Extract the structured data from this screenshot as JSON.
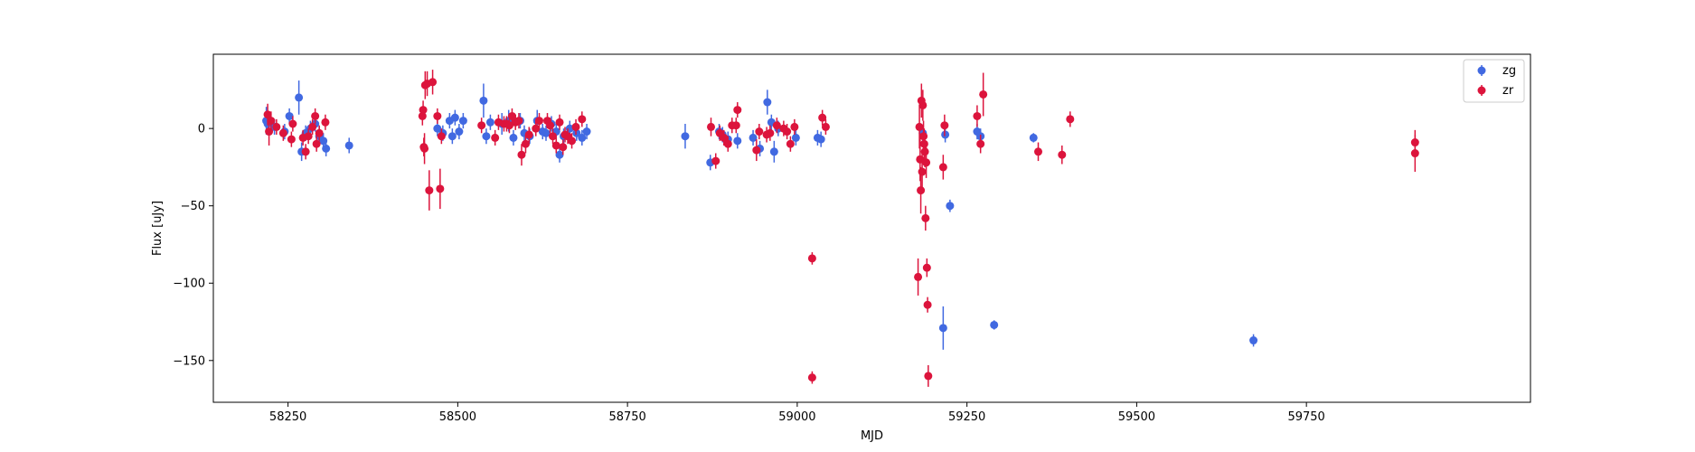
{
  "chart_data": {
    "type": "scatter",
    "title": "",
    "xlabel": "MJD",
    "ylabel": "Flux [uJy]",
    "xlim": [
      58140,
      60080
    ],
    "ylim": [
      -177,
      48
    ],
    "xticks": [
      58250,
      58500,
      58750,
      59000,
      59250,
      59500,
      59750
    ],
    "yticks": [
      0,
      -50,
      -100,
      -150
    ],
    "legend_position": "top-right",
    "series": [
      {
        "name": "zg",
        "color": "#4169e1",
        "points": [
          {
            "x": 58218,
            "y": 5,
            "err": 9
          },
          {
            "x": 58220,
            "y": 3,
            "err": 6
          },
          {
            "x": 58230,
            "y": 1,
            "err": 5
          },
          {
            "x": 58245,
            "y": -2,
            "err": 5
          },
          {
            "x": 58252,
            "y": 8,
            "err": 5
          },
          {
            "x": 58266,
            "y": 20,
            "err": 11
          },
          {
            "x": 58270,
            "y": -15,
            "err": 6
          },
          {
            "x": 58276,
            "y": -3,
            "err": 5
          },
          {
            "x": 58283,
            "y": 0,
            "err": 5
          },
          {
            "x": 58290,
            "y": 3,
            "err": 5
          },
          {
            "x": 58296,
            "y": -5,
            "err": 6
          },
          {
            "x": 58302,
            "y": -8,
            "err": 5
          },
          {
            "x": 58306,
            "y": -13,
            "err": 5
          },
          {
            "x": 58340,
            "y": -11,
            "err": 5
          },
          {
            "x": 58470,
            "y": 0,
            "err": 5
          },
          {
            "x": 58478,
            "y": -3,
            "err": 5
          },
          {
            "x": 58488,
            "y": 5,
            "err": 5
          },
          {
            "x": 58492,
            "y": -5,
            "err": 5
          },
          {
            "x": 58496,
            "y": 7,
            "err": 5
          },
          {
            "x": 58502,
            "y": -2,
            "err": 5
          },
          {
            "x": 58508,
            "y": 5,
            "err": 5
          },
          {
            "x": 58538,
            "y": 18,
            "err": 11
          },
          {
            "x": 58542,
            "y": -5,
            "err": 5
          },
          {
            "x": 58548,
            "y": 4,
            "err": 5
          },
          {
            "x": 58565,
            "y": 3,
            "err": 7
          },
          {
            "x": 58575,
            "y": 5,
            "err": 7
          },
          {
            "x": 58582,
            "y": -6,
            "err": 5
          },
          {
            "x": 58592,
            "y": 5,
            "err": 5
          },
          {
            "x": 58598,
            "y": -3,
            "err": 5
          },
          {
            "x": 58606,
            "y": -5,
            "err": 5
          },
          {
            "x": 58617,
            "y": 5,
            "err": 7
          },
          {
            "x": 58625,
            "y": -2,
            "err": 5
          },
          {
            "x": 58630,
            "y": -3,
            "err": 5
          },
          {
            "x": 58638,
            "y": 3,
            "err": 5
          },
          {
            "x": 58645,
            "y": -2,
            "err": 5
          },
          {
            "x": 58650,
            "y": -17,
            "err": 5
          },
          {
            "x": 58656,
            "y": -5,
            "err": 5
          },
          {
            "x": 58665,
            "y": 0,
            "err": 5
          },
          {
            "x": 58675,
            "y": -3,
            "err": 5
          },
          {
            "x": 58683,
            "y": -6,
            "err": 5
          },
          {
            "x": 58690,
            "y": -2,
            "err": 5
          },
          {
            "x": 58835,
            "y": -5,
            "err": 8
          },
          {
            "x": 58872,
            "y": -22,
            "err": 5
          },
          {
            "x": 58885,
            "y": -2,
            "err": 5
          },
          {
            "x": 58890,
            "y": -4,
            "err": 5
          },
          {
            "x": 58898,
            "y": -7,
            "err": 5
          },
          {
            "x": 58912,
            "y": -8,
            "err": 5
          },
          {
            "x": 58935,
            "y": -6,
            "err": 5
          },
          {
            "x": 58945,
            "y": -13,
            "err": 5
          },
          {
            "x": 58956,
            "y": 17,
            "err": 8
          },
          {
            "x": 58962,
            "y": 4,
            "err": 5
          },
          {
            "x": 58966,
            "y": -15,
            "err": 7
          },
          {
            "x": 58972,
            "y": 0,
            "err": 5
          },
          {
            "x": 58998,
            "y": -6,
            "err": 5
          },
          {
            "x": 59030,
            "y": -6,
            "err": 5
          },
          {
            "x": 59035,
            "y": -7,
            "err": 5
          },
          {
            "x": 59185,
            "y": -3,
            "err": 5
          },
          {
            "x": 59215,
            "y": -129,
            "err": 14
          },
          {
            "x": 59218,
            "y": -4,
            "err": 5
          },
          {
            "x": 59225,
            "y": -50,
            "err": 4
          },
          {
            "x": 59265,
            "y": -2,
            "err": 5
          },
          {
            "x": 59270,
            "y": -5,
            "err": 5
          },
          {
            "x": 59290,
            "y": -127,
            "err": 3
          },
          {
            "x": 59348,
            "y": -6,
            "err": 3
          },
          {
            "x": 59672,
            "y": -137,
            "err": 4
          }
        ]
      },
      {
        "name": "zr",
        "color": "#dc143c",
        "points": [
          {
            "x": 58220,
            "y": 9,
            "err": 7
          },
          {
            "x": 58222,
            "y": -2,
            "err": 9
          },
          {
            "x": 58225,
            "y": 5,
            "err": 6
          },
          {
            "x": 58233,
            "y": 1,
            "err": 5
          },
          {
            "x": 58243,
            "y": -3,
            "err": 5
          },
          {
            "x": 58255,
            "y": -7,
            "err": 5
          },
          {
            "x": 58257,
            "y": 3,
            "err": 5
          },
          {
            "x": 58272,
            "y": -6,
            "err": 5
          },
          {
            "x": 58276,
            "y": -15,
            "err": 5
          },
          {
            "x": 58280,
            "y": -5,
            "err": 5
          },
          {
            "x": 58286,
            "y": 1,
            "err": 5
          },
          {
            "x": 58290,
            "y": 8,
            "err": 5
          },
          {
            "x": 58292,
            "y": -10,
            "err": 5
          },
          {
            "x": 58296,
            "y": -3,
            "err": 5
          },
          {
            "x": 58305,
            "y": 4,
            "err": 5
          },
          {
            "x": 58448,
            "y": 8,
            "err": 6
          },
          {
            "x": 58449,
            "y": 12,
            "err": 6
          },
          {
            "x": 58450,
            "y": -12,
            "err": 6
          },
          {
            "x": 58451,
            "y": -13,
            "err": 10
          },
          {
            "x": 58452,
            "y": 28,
            "err": 9
          },
          {
            "x": 58455,
            "y": 29,
            "err": 8
          },
          {
            "x": 58458,
            "y": -40,
            "err": 13
          },
          {
            "x": 58463,
            "y": 30,
            "err": 8
          },
          {
            "x": 58470,
            "y": 8,
            "err": 5
          },
          {
            "x": 58474,
            "y": -39,
            "err": 13
          },
          {
            "x": 58476,
            "y": -5,
            "err": 5
          },
          {
            "x": 58535,
            "y": 2,
            "err": 5
          },
          {
            "x": 58555,
            "y": -6,
            "err": 5
          },
          {
            "x": 58560,
            "y": 4,
            "err": 5
          },
          {
            "x": 58568,
            "y": 3,
            "err": 5
          },
          {
            "x": 58572,
            "y": 3,
            "err": 5
          },
          {
            "x": 58576,
            "y": 2,
            "err": 5
          },
          {
            "x": 58580,
            "y": 8,
            "err": 5
          },
          {
            "x": 58585,
            "y": 4,
            "err": 5
          },
          {
            "x": 58590,
            "y": 5,
            "err": 5
          },
          {
            "x": 58594,
            "y": -17,
            "err": 7
          },
          {
            "x": 58600,
            "y": -10,
            "err": 6
          },
          {
            "x": 58605,
            "y": -4,
            "err": 5
          },
          {
            "x": 58615,
            "y": 0,
            "err": 5
          },
          {
            "x": 58620,
            "y": 5,
            "err": 5
          },
          {
            "x": 58632,
            "y": 5,
            "err": 5
          },
          {
            "x": 58636,
            "y": 2,
            "err": 5
          },
          {
            "x": 58640,
            "y": -5,
            "err": 5
          },
          {
            "x": 58645,
            "y": -11,
            "err": 5
          },
          {
            "x": 58650,
            "y": 4,
            "err": 5
          },
          {
            "x": 58655,
            "y": -12,
            "err": 5
          },
          {
            "x": 58658,
            "y": -4,
            "err": 5
          },
          {
            "x": 58662,
            "y": -5,
            "err": 5
          },
          {
            "x": 58668,
            "y": -8,
            "err": 5
          },
          {
            "x": 58674,
            "y": 1,
            "err": 5
          },
          {
            "x": 58683,
            "y": 6,
            "err": 5
          },
          {
            "x": 58873,
            "y": 1,
            "err": 6
          },
          {
            "x": 58880,
            "y": -21,
            "err": 5
          },
          {
            "x": 58886,
            "y": -3,
            "err": 5
          },
          {
            "x": 58892,
            "y": -6,
            "err": 5
          },
          {
            "x": 58898,
            "y": -10,
            "err": 5
          },
          {
            "x": 58904,
            "y": 2,
            "err": 5
          },
          {
            "x": 58910,
            "y": 2,
            "err": 5
          },
          {
            "x": 58912,
            "y": 12,
            "err": 5
          },
          {
            "x": 58940,
            "y": -14,
            "err": 7
          },
          {
            "x": 58944,
            "y": -2,
            "err": 5
          },
          {
            "x": 58955,
            "y": -4,
            "err": 5
          },
          {
            "x": 58960,
            "y": -3,
            "err": 5
          },
          {
            "x": 58970,
            "y": 2,
            "err": 5
          },
          {
            "x": 58980,
            "y": 0,
            "err": 5
          },
          {
            "x": 58985,
            "y": -2,
            "err": 5
          },
          {
            "x": 58990,
            "y": -10,
            "err": 5
          },
          {
            "x": 58996,
            "y": 1,
            "err": 5
          },
          {
            "x": 59022,
            "y": -84,
            "err": 4
          },
          {
            "x": 59022,
            "y": -161,
            "err": 4
          },
          {
            "x": 59037,
            "y": 7,
            "err": 5
          },
          {
            "x": 59042,
            "y": 1,
            "err": 5
          },
          {
            "x": 59178,
            "y": -96,
            "err": 12
          },
          {
            "x": 59180,
            "y": 1,
            "err": 14
          },
          {
            "x": 59181,
            "y": -20,
            "err": 14
          },
          {
            "x": 59182,
            "y": -40,
            "err": 15
          },
          {
            "x": 59183,
            "y": 18,
            "err": 11
          },
          {
            "x": 59184,
            "y": -28,
            "err": 14
          },
          {
            "x": 59185,
            "y": 15,
            "err": 10
          },
          {
            "x": 59186,
            "y": -5,
            "err": 10
          },
          {
            "x": 59187,
            "y": -10,
            "err": 10
          },
          {
            "x": 59188,
            "y": -15,
            "err": 10
          },
          {
            "x": 59189,
            "y": -58,
            "err": 8
          },
          {
            "x": 59190,
            "y": -22,
            "err": 10
          },
          {
            "x": 59191,
            "y": -90,
            "err": 6
          },
          {
            "x": 59192,
            "y": -114,
            "err": 5
          },
          {
            "x": 59193,
            "y": -160,
            "err": 7
          },
          {
            "x": 59215,
            "y": -25,
            "err": 8
          },
          {
            "x": 59217,
            "y": 2,
            "err": 7
          },
          {
            "x": 59265,
            "y": 8,
            "err": 7
          },
          {
            "x": 59270,
            "y": -10,
            "err": 6
          },
          {
            "x": 59274,
            "y": 22,
            "err": 14
          },
          {
            "x": 59355,
            "y": -15,
            "err": 6
          },
          {
            "x": 59390,
            "y": -17,
            "err": 6
          },
          {
            "x": 59402,
            "y": 6,
            "err": 5
          },
          {
            "x": 59910,
            "y": -9,
            "err": 8
          },
          {
            "x": 59910,
            "y": -16,
            "err": 12
          }
        ]
      }
    ]
  }
}
